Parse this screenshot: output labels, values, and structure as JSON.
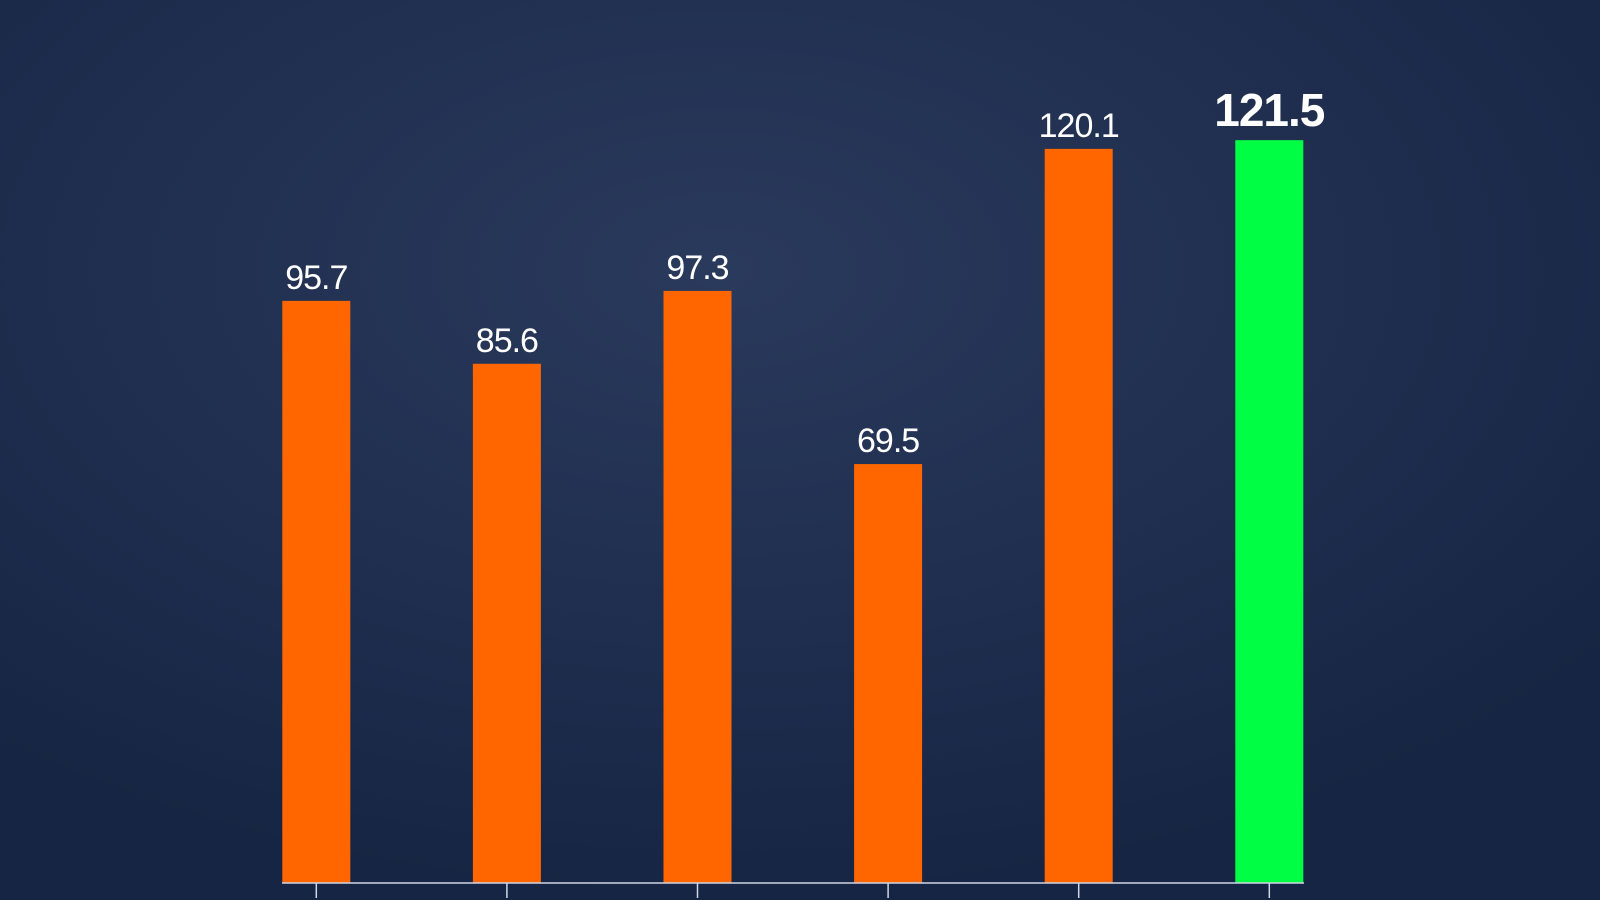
{
  "chart_data": {
    "type": "bar",
    "categories": [
      null,
      null,
      null,
      null,
      null,
      null
    ],
    "values": [
      95.7,
      85.6,
      97.3,
      69.5,
      120.1,
      121.5
    ],
    "colors": [
      "#ff6600",
      "#ff6600",
      "#ff6600",
      "#ff6600",
      "#ff6600",
      "#00ff44"
    ],
    "ylim": [
      0,
      144
    ]
  }
}
